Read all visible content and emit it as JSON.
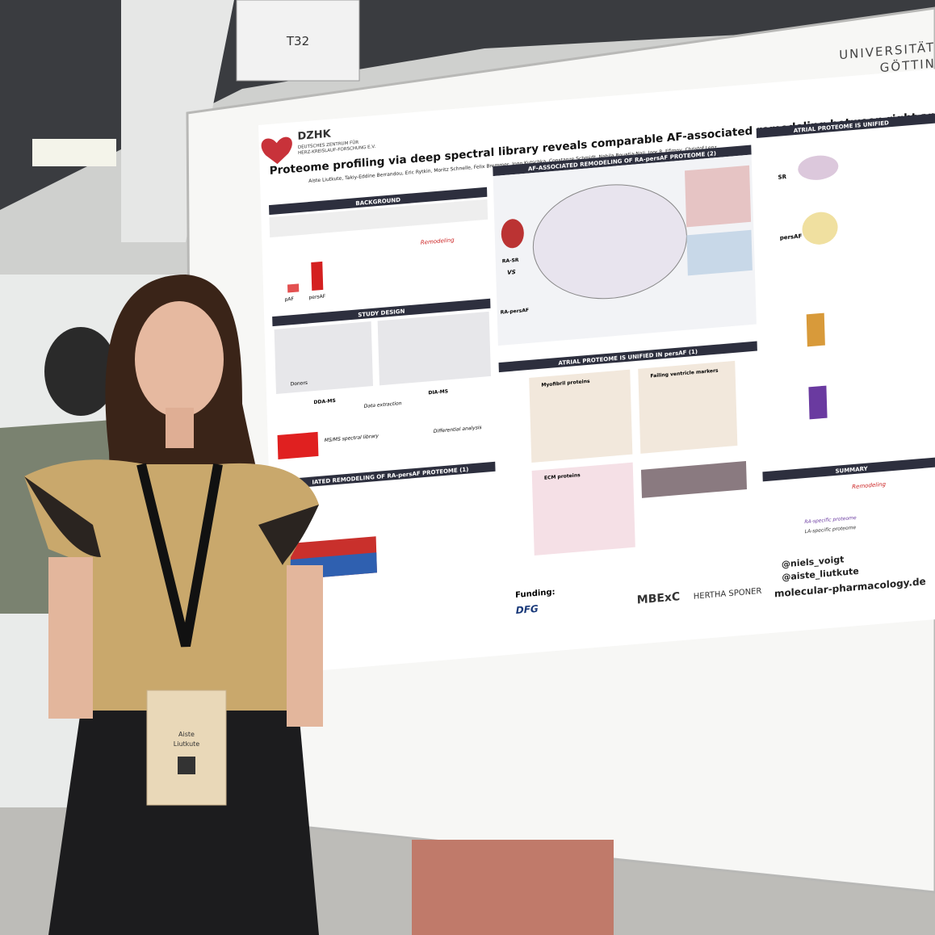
{
  "sign": {
    "label": "T32"
  },
  "university": {
    "line1": "UNIVERSITÄTSMEDI",
    "line2": "GÖTTING"
  },
  "poster": {
    "logo": {
      "name": "DZHK",
      "sub1": "DEUTSCHES ZENTRUM FÜR",
      "sub2": "HERZ-KREISLAUF-FORSCHUNG E.V."
    },
    "title": "Proteome profiling via deep spectral library reveals comparable AF-associated remodeling between right and left atria in pers",
    "authors": "Aiste Liutkute, Takiy-Eddine Berrandou, Eric Rytkin, Moritz Schnelle, Felix Bremmer, Ingo Kutschka, Constanze Schmidt, Nabila Bouatia-Naji, Igor R. Efimov, Christof Lenz",
    "sections": {
      "background": "BACKGROUND",
      "study_design": "STUDY DESIGN",
      "remodeling_1": "IATED REMODELING OF RA-persAF PROTEOME (1)",
      "remodeling_2": "AF-ASSOCIATED REMODELING OF RA-persAF PROTEOME (2)",
      "unified_1": "ATRIAL PROTEOME IS UNIFIED IN persAF (1)",
      "unified_2": "ATRIAL PROTEOME IS UNIFIED",
      "summary": "SUMMARY"
    },
    "labels": {
      "pAF": "pAF",
      "persAF": "persAF",
      "donors": "Donors",
      "ddams": "DDA-MS",
      "diams": "DIA-MS",
      "extraction": "Data extraction",
      "library": "MS/MS spectral library",
      "differential": "Differential analysis",
      "myofibril": "Myofibril proteins",
      "failing": "Failing ventricle markers",
      "ecm": "ECM proteins",
      "rasr": "RA-SR",
      "vs": "VS",
      "rapersaf": "RA-persAF",
      "sr": "SR",
      "remodeling": "Remodeling",
      "la_specific": "LA-specific proteome",
      "ra_specific": "RA-specific proteome"
    },
    "funding": "Funding:",
    "funders": {
      "dfg": "DFG",
      "mbex": "MBExC",
      "hertha": "HERTHA SPONER"
    },
    "twitter1": "@niels_voigt",
    "twitter2": "@aiste_liutkute",
    "website": "molecular-pharmacology.de"
  },
  "badge": {
    "first": "Aiste",
    "last": "Liutkute"
  }
}
